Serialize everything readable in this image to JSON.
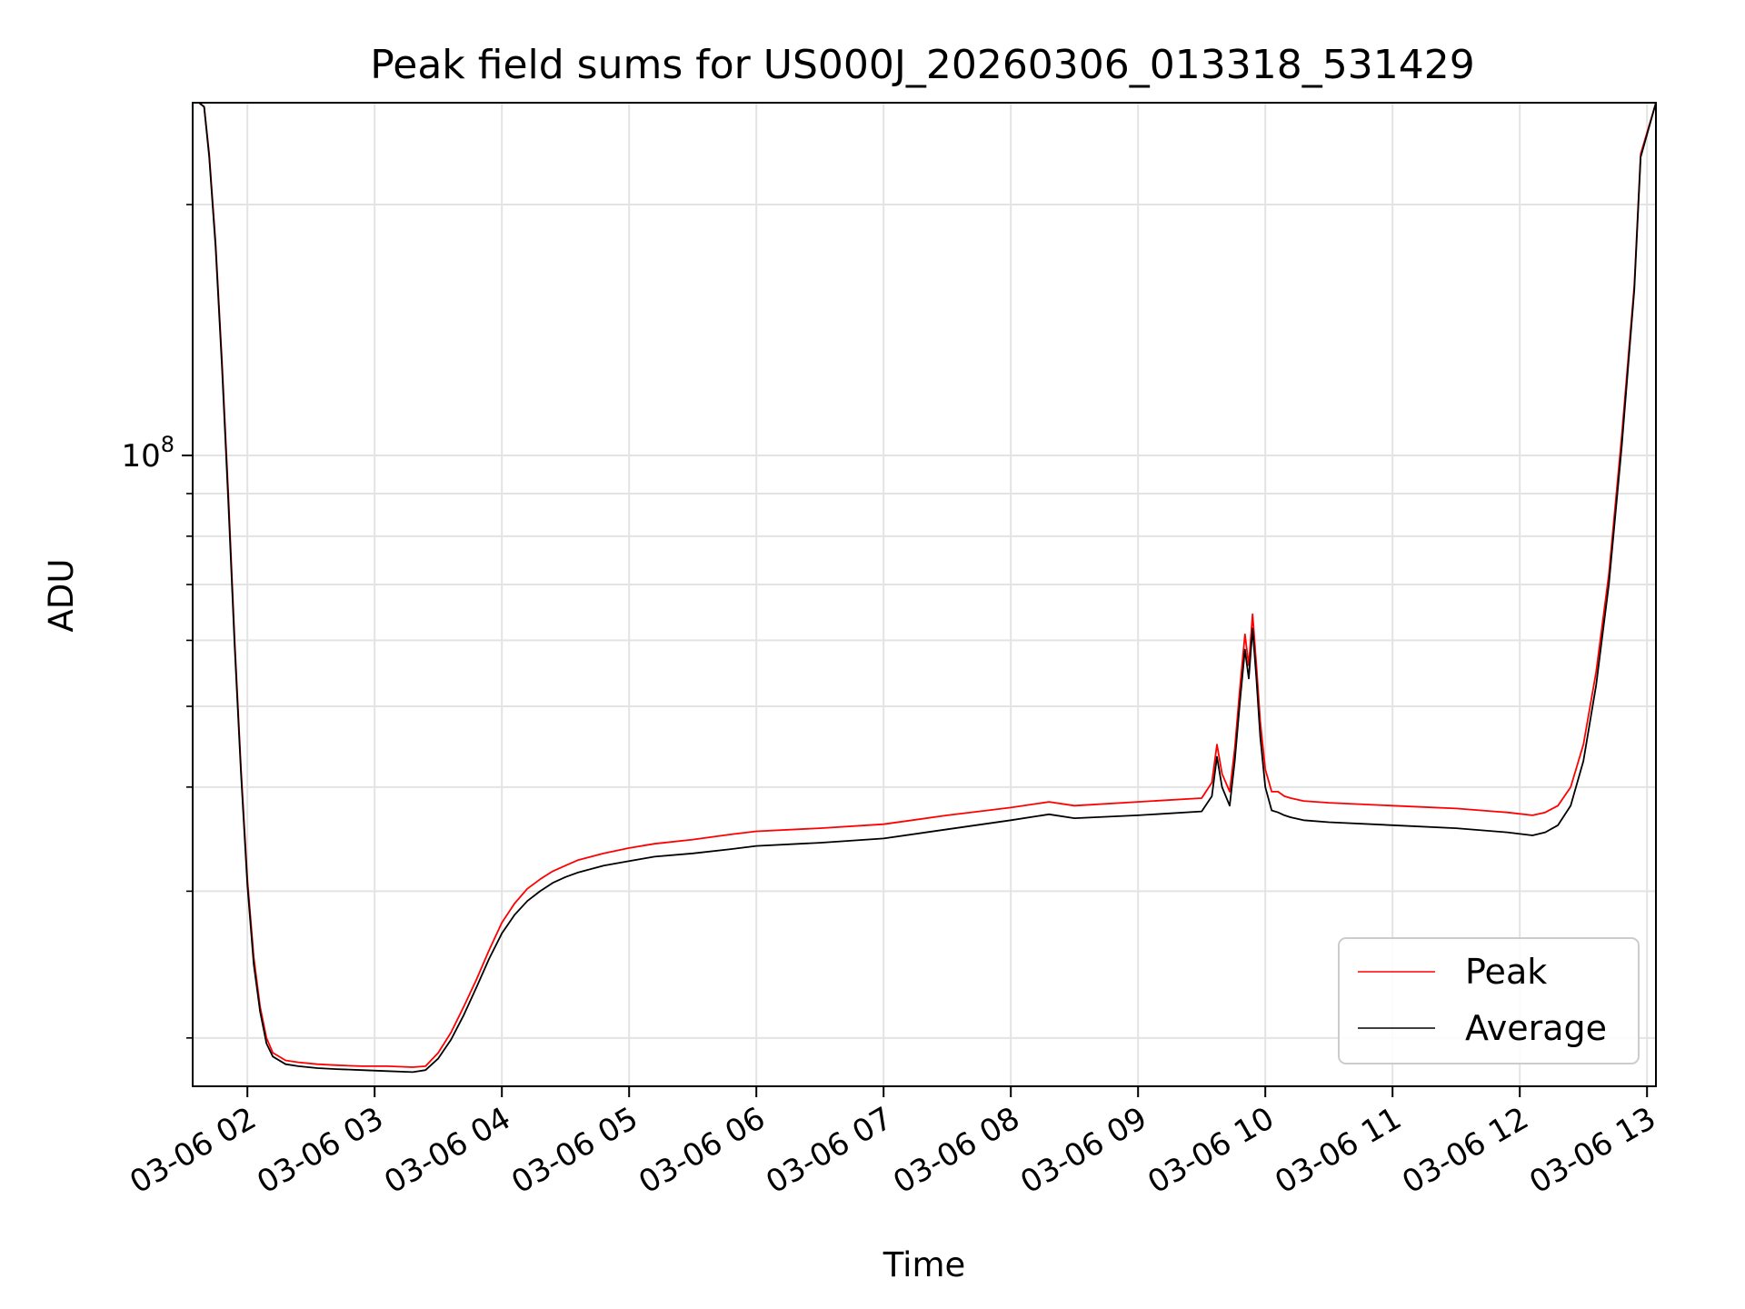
{
  "chart_data": {
    "type": "line",
    "title": "Peak field sums for US000J_20260306_013318_531429",
    "xlabel": "Time",
    "ylabel": "ADU",
    "yscale": "log",
    "xlim": [
      1.57,
      13.07
    ],
    "ylim": [
      17500000,
      265000000
    ],
    "grid": true,
    "legend_position": "lower-right",
    "x_ticks": [
      {
        "value": 2,
        "label": "03-06 02"
      },
      {
        "value": 3,
        "label": "03-06 03"
      },
      {
        "value": 4,
        "label": "03-06 04"
      },
      {
        "value": 5,
        "label": "03-06 05"
      },
      {
        "value": 6,
        "label": "03-06 06"
      },
      {
        "value": 7,
        "label": "03-06 07"
      },
      {
        "value": 8,
        "label": "03-06 08"
      },
      {
        "value": 9,
        "label": "03-06 09"
      },
      {
        "value": 10,
        "label": "03-06 10"
      },
      {
        "value": 11,
        "label": "03-06 11"
      },
      {
        "value": 12,
        "label": "03-06 12"
      },
      {
        "value": 13,
        "label": "03-06 13"
      }
    ],
    "y_ticks": [
      {
        "value": 100000000,
        "base": "10",
        "exp": "8"
      }
    ],
    "series": [
      {
        "name": "Peak",
        "color": "#ff0000",
        "x": [
          1.57,
          1.62,
          1.66,
          1.7,
          1.75,
          1.8,
          1.85,
          1.9,
          1.95,
          2.0,
          2.05,
          2.1,
          2.15,
          2.2,
          2.3,
          2.4,
          2.55,
          2.7,
          2.9,
          3.1,
          3.3,
          3.4,
          3.5,
          3.6,
          3.7,
          3.8,
          3.9,
          4.0,
          4.1,
          4.2,
          4.3,
          4.4,
          4.5,
          4.6,
          4.8,
          5.0,
          5.2,
          5.5,
          5.8,
          6.0,
          6.5,
          7.0,
          7.5,
          8.0,
          8.3,
          8.5,
          9.0,
          9.5,
          9.58,
          9.62,
          9.66,
          9.72,
          9.76,
          9.8,
          9.84,
          9.87,
          9.9,
          9.93,
          9.96,
          10.0,
          10.05,
          10.1,
          10.15,
          10.2,
          10.3,
          10.5,
          11.0,
          11.5,
          11.9,
          12.1,
          12.2,
          12.3,
          12.4,
          12.5,
          12.6,
          12.7,
          12.8,
          12.9,
          12.95,
          13.07
        ],
        "y": [
          265000000,
          265000000,
          262000000,
          230000000,
          180000000,
          130000000,
          90000000,
          60000000,
          42000000,
          31000000,
          25000000,
          21800000,
          20000000,
          19200000,
          18800000,
          18700000,
          18600000,
          18550000,
          18500000,
          18500000,
          18450000,
          18500000,
          19200000,
          20300000,
          21800000,
          23500000,
          25500000,
          27500000,
          29000000,
          30200000,
          31000000,
          31700000,
          32200000,
          32700000,
          33300000,
          33800000,
          34200000,
          34600000,
          35100000,
          35400000,
          35700000,
          36100000,
          37000000,
          37800000,
          38400000,
          38000000,
          38400000,
          38800000,
          40500000,
          45000000,
          41500000,
          39500000,
          44500000,
          52500000,
          61000000,
          56000000,
          64500000,
          56000000,
          48000000,
          42000000,
          39500000,
          39500000,
          39000000,
          38800000,
          38500000,
          38300000,
          38000000,
          37700000,
          37300000,
          37000000,
          37300000,
          38000000,
          40000000,
          45000000,
          55000000,
          72000000,
          105000000,
          160000000,
          230000000,
          265000000
        ]
      },
      {
        "name": "Average",
        "color": "#000000",
        "x": [
          1.57,
          1.62,
          1.66,
          1.7,
          1.75,
          1.8,
          1.85,
          1.9,
          1.95,
          2.0,
          2.05,
          2.1,
          2.15,
          2.2,
          2.3,
          2.4,
          2.55,
          2.7,
          2.9,
          3.1,
          3.3,
          3.4,
          3.5,
          3.6,
          3.7,
          3.8,
          3.9,
          4.0,
          4.1,
          4.2,
          4.3,
          4.4,
          4.5,
          4.6,
          4.8,
          5.0,
          5.2,
          5.5,
          5.8,
          6.0,
          6.5,
          7.0,
          7.5,
          8.0,
          8.3,
          8.5,
          9.0,
          9.5,
          9.58,
          9.62,
          9.66,
          9.72,
          9.76,
          9.8,
          9.84,
          9.87,
          9.9,
          9.93,
          9.96,
          10.0,
          10.05,
          10.1,
          10.15,
          10.2,
          10.3,
          10.5,
          11.0,
          11.5,
          11.9,
          12.1,
          12.2,
          12.3,
          12.4,
          12.5,
          12.6,
          12.7,
          12.8,
          12.9,
          12.95,
          13.07
        ],
        "y": [
          265000000,
          265000000,
          262000000,
          228000000,
          178000000,
          128000000,
          88000000,
          59000000,
          41500000,
          30500000,
          24500000,
          21500000,
          19700000,
          19000000,
          18600000,
          18500000,
          18400000,
          18350000,
          18300000,
          18250000,
          18200000,
          18300000,
          18900000,
          19900000,
          21300000,
          23000000,
          24900000,
          26700000,
          28100000,
          29200000,
          30000000,
          30700000,
          31200000,
          31600000,
          32200000,
          32600000,
          33000000,
          33300000,
          33700000,
          34000000,
          34300000,
          34700000,
          35600000,
          36500000,
          37100000,
          36700000,
          37000000,
          37400000,
          39000000,
          43500000,
          40000000,
          38000000,
          43000000,
          50500000,
          58500000,
          54000000,
          62000000,
          54000000,
          46000000,
          40000000,
          37500000,
          37300000,
          37000000,
          36800000,
          36500000,
          36300000,
          36000000,
          35700000,
          35300000,
          35000000,
          35300000,
          36000000,
          38000000,
          43000000,
          53000000,
          70000000,
          102000000,
          158000000,
          228000000,
          265000000
        ]
      }
    ]
  }
}
